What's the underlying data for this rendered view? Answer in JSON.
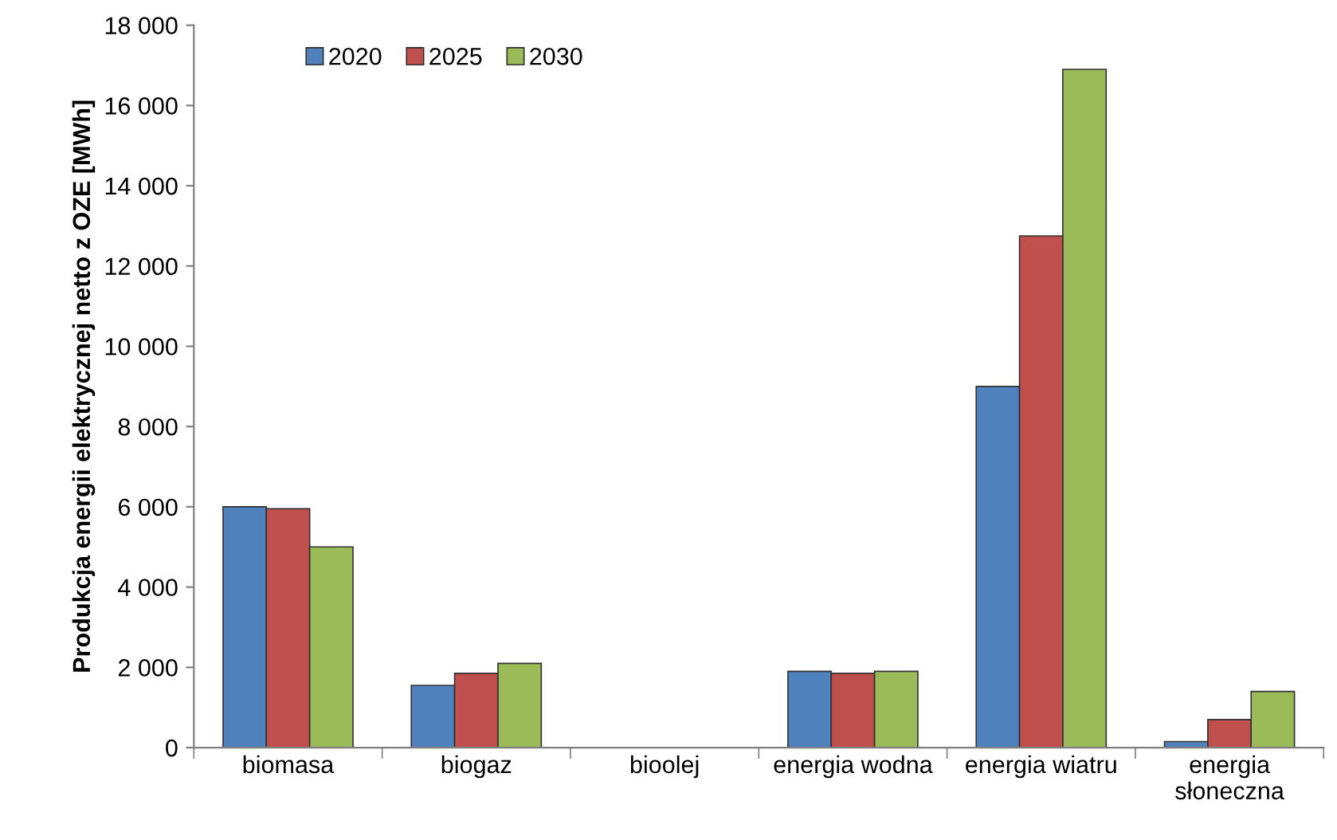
{
  "chart_data": {
    "type": "bar",
    "ylabel": "Produkcja energii elektrycznej netto z OZE [MWh]",
    "categories": [
      "biomasa",
      "biogaz",
      "bioolej",
      "energia wodna",
      "energia wiatru",
      "energia\nsłoneczna"
    ],
    "series": [
      {
        "name": "2020",
        "color": "#4f81bd",
        "values": [
          6000,
          1550,
          0,
          1900,
          9000,
          150
        ]
      },
      {
        "name": "2025",
        "color": "#c0504d",
        "values": [
          5950,
          1850,
          0,
          1850,
          12750,
          700
        ]
      },
      {
        "name": "2030",
        "color": "#9bbb59",
        "values": [
          5000,
          2100,
          0,
          1900,
          16900,
          1400
        ]
      }
    ],
    "ylim": [
      0,
      18000
    ],
    "yticks": [
      0,
      {
        "value": 2000,
        "label": "2 000"
      },
      {
        "value": 4000,
        "label": "4 000"
      },
      {
        "value": 6000,
        "label": "6 000"
      },
      {
        "value": 8000,
        "label": "8 000"
      },
      {
        "value": 10000,
        "label": "10 000"
      },
      {
        "value": 12000,
        "label": "12 000"
      },
      {
        "value": 14000,
        "label": "14 000"
      },
      {
        "value": 16000,
        "label": "16 000"
      },
      {
        "value": 18000,
        "label": "18 000"
      }
    ],
    "grid": false,
    "legend": "top left"
  }
}
